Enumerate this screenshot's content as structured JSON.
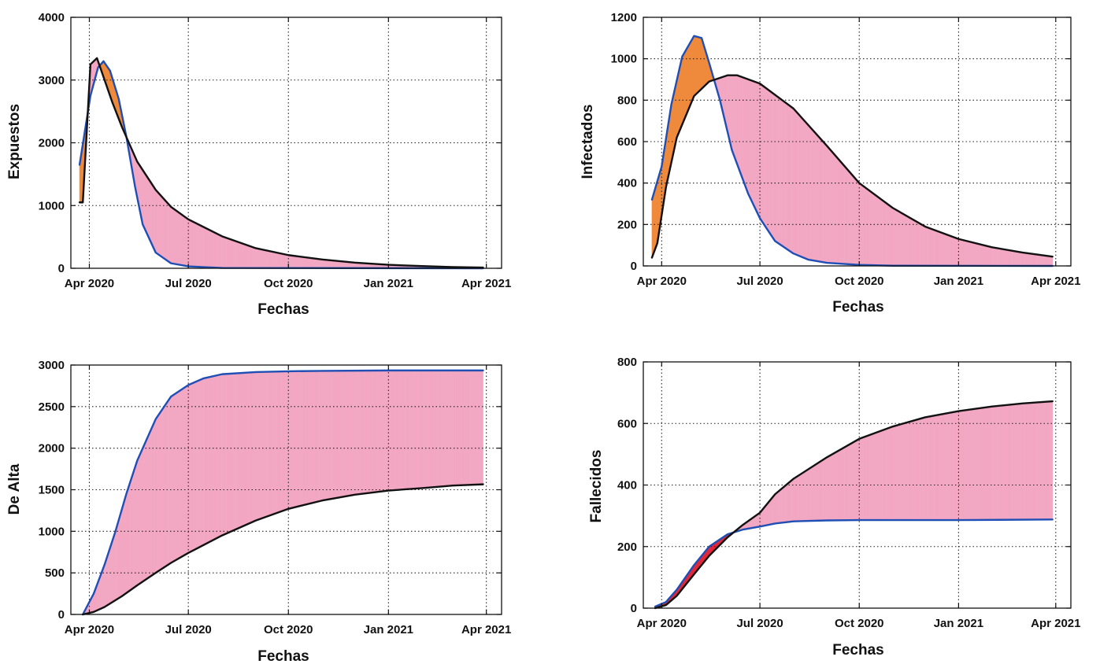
{
  "chart_data": [
    {
      "type": "area",
      "ylabel": "Expuestos",
      "xlabel": "Fechas",
      "xlim": [
        "2020-03-15",
        "2021-04-15"
      ],
      "ylim": [
        0,
        4000
      ],
      "x_ticks": [
        "2020-04-01",
        "2020-07-01",
        "2020-10-01",
        "2021-01-01",
        "2021-04-01"
      ],
      "x_tick_labels": [
        "Apr 2020",
        "Jul 2020",
        "Oct 2020",
        "Jan 2021",
        "Apr 2021"
      ],
      "y_ticks": [
        0,
        1000,
        2000,
        3000,
        4000
      ],
      "y_tick_labels": [
        "0",
        "1000",
        "2000",
        "3000",
        "4000"
      ],
      "grid": true,
      "series": [
        {
          "color": "#1f4fb5",
          "x": [
            "2020-03-23",
            "2020-04-02",
            "2020-04-09",
            "2020-04-14",
            "2020-04-20",
            "2020-04-28",
            "2020-05-05",
            "2020-05-13",
            "2020-05-20",
            "2020-06-01",
            "2020-06-15",
            "2020-07-01",
            "2020-08-01",
            "2021-03-29"
          ],
          "y": [
            1650,
            2750,
            3200,
            3300,
            3150,
            2700,
            2100,
            1300,
            700,
            250,
            80,
            30,
            5,
            0
          ]
        },
        {
          "color": "#111111",
          "x": [
            "2020-03-23",
            "2020-03-26",
            "2020-04-02",
            "2020-04-08",
            "2020-04-15",
            "2020-04-22",
            "2020-05-01",
            "2020-05-15",
            "2020-06-01",
            "2020-06-15",
            "2020-07-01",
            "2020-08-01",
            "2020-09-01",
            "2020-10-01",
            "2020-11-01",
            "2020-12-01",
            "2021-01-01",
            "2021-02-01",
            "2021-03-01",
            "2021-03-29"
          ],
          "y": [
            1050,
            1050,
            3250,
            3350,
            3000,
            2650,
            2250,
            1700,
            1250,
            980,
            780,
            510,
            320,
            210,
            140,
            90,
            55,
            35,
            20,
            12
          ]
        }
      ],
      "fill_between": [
        "#ef8a3c",
        "#f2a7c2"
      ]
    },
    {
      "type": "area",
      "ylabel": "Infectados",
      "xlabel": "Fechas",
      "xlim": [
        "2020-03-15",
        "2021-04-15"
      ],
      "ylim": [
        0,
        1200
      ],
      "x_ticks": [
        "2020-04-01",
        "2020-07-01",
        "2020-10-01",
        "2021-01-01",
        "2021-04-01"
      ],
      "x_tick_labels": [
        "Apr 2020",
        "Jul 2020",
        "Oct 2020",
        "Jan 2021",
        "Apr 2021"
      ],
      "y_ticks": [
        0,
        200,
        400,
        600,
        800,
        1000,
        1200
      ],
      "y_tick_labels": [
        "0",
        "200",
        "400",
        "600",
        "800",
        "1000",
        "1200"
      ],
      "grid": true,
      "series": [
        {
          "color": "#1f4fb5",
          "x": [
            "2020-03-23",
            "2020-04-01",
            "2020-04-10",
            "2020-04-20",
            "2020-05-01",
            "2020-05-08",
            "2020-05-15",
            "2020-05-25",
            "2020-06-05",
            "2020-06-20",
            "2020-07-01",
            "2020-07-15",
            "2020-08-01",
            "2020-08-15",
            "2020-09-01",
            "2020-10-01",
            "2020-11-01",
            "2021-03-29"
          ],
          "y": [
            320,
            480,
            780,
            1010,
            1110,
            1100,
            980,
            800,
            560,
            350,
            230,
            120,
            60,
            30,
            15,
            5,
            1,
            0
          ]
        },
        {
          "color": "#111111",
          "x": [
            "2020-03-23",
            "2020-03-28",
            "2020-04-05",
            "2020-04-15",
            "2020-05-01",
            "2020-05-15",
            "2020-06-01",
            "2020-06-10",
            "2020-07-01",
            "2020-08-01",
            "2020-09-01",
            "2020-10-01",
            "2020-11-01",
            "2020-12-01",
            "2021-01-01",
            "2021-02-01",
            "2021-03-01",
            "2021-03-29"
          ],
          "y": [
            40,
            110,
            380,
            620,
            820,
            890,
            920,
            920,
            880,
            760,
            580,
            400,
            280,
            190,
            130,
            90,
            65,
            45
          ]
        }
      ],
      "fill_between": [
        "#ef8a3c",
        "#f2a7c2"
      ]
    },
    {
      "type": "area",
      "ylabel": "De Alta",
      "xlabel": "Fechas",
      "xlim": [
        "2020-03-15",
        "2021-04-15"
      ],
      "ylim": [
        0,
        3000
      ],
      "x_ticks": [
        "2020-04-01",
        "2020-07-01",
        "2020-10-01",
        "2021-01-01",
        "2021-04-01"
      ],
      "x_tick_labels": [
        "Apr 2020",
        "Jul 2020",
        "Oct 2020",
        "Jan 2021",
        "Apr 2021"
      ],
      "y_ticks": [
        0,
        500,
        1000,
        1500,
        2000,
        2500,
        3000
      ],
      "y_tick_labels": [
        "0",
        "500",
        "1000",
        "1500",
        "2000",
        "2500",
        "3000"
      ],
      "grid": true,
      "series": [
        {
          "color": "#1f4fb5",
          "x": [
            "2020-03-26",
            "2020-04-05",
            "2020-04-15",
            "2020-04-25",
            "2020-05-05",
            "2020-05-15",
            "2020-06-01",
            "2020-06-15",
            "2020-07-01",
            "2020-07-15",
            "2020-08-01",
            "2020-09-01",
            "2020-10-01",
            "2020-11-01",
            "2021-01-01",
            "2021-03-29"
          ],
          "y": [
            0,
            250,
            600,
            1000,
            1450,
            1850,
            2350,
            2620,
            2760,
            2840,
            2890,
            2915,
            2925,
            2930,
            2935,
            2935
          ]
        },
        {
          "color": "#111111",
          "x": [
            "2020-03-26",
            "2020-04-05",
            "2020-04-15",
            "2020-05-01",
            "2020-05-15",
            "2020-06-01",
            "2020-06-15",
            "2020-07-01",
            "2020-08-01",
            "2020-09-01",
            "2020-10-01",
            "2020-11-01",
            "2020-12-01",
            "2021-01-01",
            "2021-02-01",
            "2021-03-01",
            "2021-03-29"
          ],
          "y": [
            0,
            30,
            90,
            220,
            350,
            500,
            620,
            740,
            950,
            1130,
            1270,
            1370,
            1440,
            1490,
            1520,
            1550,
            1565
          ]
        }
      ],
      "fill_between": [
        "#f2a7c2",
        "#f2a7c2"
      ]
    },
    {
      "type": "area",
      "ylabel": "Fallecidos",
      "xlabel": "Fechas",
      "xlim": [
        "2020-03-15",
        "2021-04-15"
      ],
      "ylim": [
        0,
        800
      ],
      "x_ticks": [
        "2020-04-01",
        "2020-07-01",
        "2020-10-01",
        "2021-01-01",
        "2021-04-01"
      ],
      "x_tick_labels": [
        "Apr 2020",
        "Jul 2020",
        "Oct 2020",
        "Jan 2021",
        "Apr 2021"
      ],
      "y_ticks": [
        0,
        200,
        400,
        600,
        800
      ],
      "y_tick_labels": [
        "0",
        "200",
        "400",
        "600",
        "800"
      ],
      "grid": true,
      "series": [
        {
          "color": "#1f4fb5",
          "x": [
            "2020-03-26",
            "2020-04-05",
            "2020-04-15",
            "2020-05-01",
            "2020-05-15",
            "2020-06-01",
            "2020-06-15",
            "2020-07-01",
            "2020-07-15",
            "2020-08-01",
            "2020-09-01",
            "2020-10-01",
            "2021-01-01",
            "2021-03-29"
          ],
          "y": [
            5,
            20,
            60,
            140,
            200,
            240,
            255,
            265,
            275,
            282,
            285,
            286,
            286,
            288
          ]
        },
        {
          "color": "#111111",
          "x": [
            "2020-03-26",
            "2020-04-05",
            "2020-04-15",
            "2020-05-01",
            "2020-05-15",
            "2020-06-01",
            "2020-06-15",
            "2020-07-01",
            "2020-07-15",
            "2020-08-01",
            "2020-09-01",
            "2020-10-01",
            "2020-11-01",
            "2020-12-01",
            "2021-01-01",
            "2021-02-01",
            "2021-03-01",
            "2021-03-29"
          ],
          "y": [
            0,
            10,
            40,
            110,
            170,
            230,
            270,
            310,
            370,
            420,
            490,
            550,
            590,
            620,
            640,
            655,
            665,
            672
          ]
        }
      ],
      "fill_between": [
        "#e0283a",
        "#f2a7c2"
      ]
    }
  ]
}
